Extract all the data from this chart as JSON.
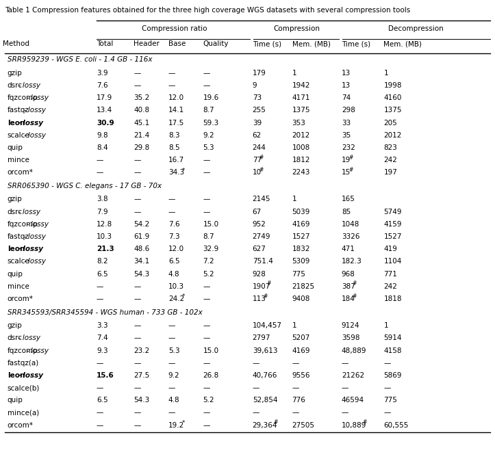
{
  "title": "Table 1 Compression features obtained for the three high coverage WGS datasets with several compression tools",
  "columns": [
    "Method",
    "Total",
    "Header",
    "Base",
    "Quality",
    "Time (s)",
    "Mem. (MB)",
    "Time (s)",
    "Mem. (MB)"
  ],
  "col_groups": [
    {
      "label": "",
      "cols": [
        0
      ]
    },
    {
      "label": "Compression ratio",
      "cols": [
        1,
        2,
        3,
        4
      ]
    },
    {
      "label": "Compression",
      "cols": [
        5,
        6
      ]
    },
    {
      "label": "Decompression",
      "cols": [
        7,
        8
      ]
    }
  ],
  "sections": [
    {
      "header": "SRR959239 - WGS E. coli - 1.4 GB - 116x",
      "header_italic": [
        false,
        true,
        false,
        false,
        false
      ],
      "rows": [
        {
          "method": "gzip",
          "bold": false,
          "data": [
            "3.9",
            "—",
            "—",
            "—",
            "179",
            "1",
            "13",
            "1"
          ]
        },
        {
          "method": "dsrc-lossy",
          "bold": false,
          "italic": true,
          "data": [
            "7.6",
            "—",
            "—",
            "—",
            "9",
            "1942",
            "13",
            "1998"
          ]
        },
        {
          "method": "fqzcomp-lossy",
          "bold": false,
          "italic": true,
          "data": [
            "17.9",
            "35.2",
            "12.0",
            "19.6",
            "73",
            "4171",
            "74",
            "4160"
          ]
        },
        {
          "method": "fastqz-lossy",
          "bold": false,
          "italic": true,
          "data": [
            "13.4",
            "40.8",
            "14.1",
            "8.7",
            "255",
            "1375",
            "298",
            "1375"
          ]
        },
        {
          "method": "leon-lossy",
          "bold": true,
          "italic": true,
          "data": [
            "30.9",
            "45.1",
            "17.5",
            "59.3",
            "39",
            "353",
            "33",
            "205"
          ]
        },
        {
          "method": "scalce-lossy",
          "bold": false,
          "italic": true,
          "data": [
            "9.8",
            "21.4",
            "8.3",
            "9.2",
            "62",
            "2012",
            "35",
            "2012"
          ]
        },
        {
          "method": "quip",
          "bold": false,
          "data": [
            "8.4",
            "29.8",
            "8.5",
            "5.3",
            "244",
            "1008",
            "232",
            "823"
          ]
        },
        {
          "method": "mince",
          "bold": false,
          "data": [
            "—",
            "—",
            "16.7",
            "—",
            "77♯",
            "1812",
            "19♯",
            "242"
          ]
        },
        {
          "method": "orcom*",
          "bold": false,
          "data": [
            "—",
            "—",
            "34.3*",
            "—",
            "10♯",
            "2243",
            "15♯",
            "197"
          ]
        }
      ]
    },
    {
      "header": "SRR065390 - WGS C. elegans - 17 GB - 70x",
      "header_italic": [
        false,
        true,
        false,
        false,
        false
      ],
      "rows": [
        {
          "method": "gzip",
          "bold": false,
          "data": [
            "3.8",
            "—",
            "—",
            "—",
            "2145",
            "1",
            "165",
            ""
          ]
        },
        {
          "method": "dsrc-lossy",
          "bold": false,
          "italic": true,
          "data": [
            "7.9",
            "—",
            "—",
            "—",
            "67",
            "5039",
            "85",
            "5749"
          ]
        },
        {
          "method": "fqzcomp-lossy",
          "bold": false,
          "italic": true,
          "data": [
            "12.8",
            "54.2",
            "7.6",
            "15.0",
            "952",
            "4169",
            "1048",
            "4159"
          ]
        },
        {
          "method": "fastqz-lossy",
          "bold": false,
          "italic": true,
          "data": [
            "10.3",
            "61.9",
            "7.3",
            "8.7",
            "2749",
            "1527",
            "3326",
            "1527"
          ]
        },
        {
          "method": "leon-lossy",
          "bold": true,
          "italic": true,
          "data": [
            "21.3",
            "48.6",
            "12.0",
            "32.9",
            "627",
            "1832",
            "471",
            "419"
          ]
        },
        {
          "method": "scalce-lossy",
          "bold": false,
          "italic": true,
          "data": [
            "8.2",
            "34.1",
            "6.5",
            "7.2",
            "751.4",
            "5309",
            "182.3",
            "1104"
          ]
        },
        {
          "method": "quip",
          "bold": false,
          "data": [
            "6.5",
            "54.3",
            "4.8",
            "5.2",
            "928",
            "775",
            "968",
            "771"
          ]
        },
        {
          "method": "mince",
          "bold": false,
          "data": [
            "—",
            "—",
            "10.3",
            "—",
            "1907♯",
            "21825",
            "387♯",
            "242"
          ]
        },
        {
          "method": "orcom*",
          "bold": false,
          "data": [
            "—",
            "—",
            "24.2*",
            "—",
            "113♯",
            "9408",
            "184♯",
            "1818"
          ]
        }
      ]
    },
    {
      "header": "SRR345593/SRR345594 - WGS human - 733 GB - 102x",
      "header_italic": [
        false,
        false,
        false,
        false,
        false
      ],
      "rows": [
        {
          "method": "gzip",
          "bold": false,
          "data": [
            "3.3",
            "—",
            "—",
            "—",
            "104,457",
            "1",
            "9124",
            "1"
          ]
        },
        {
          "method": "dsrc-lossy",
          "bold": false,
          "italic": true,
          "data": [
            "7.4",
            "—",
            "—",
            "—",
            "2797",
            "5207",
            "3598",
            "5914"
          ]
        },
        {
          "method": "fqzcomp-lossy",
          "bold": false,
          "italic": true,
          "data": [
            "9.3",
            "23.2",
            "5.3",
            "15.0",
            "39,613",
            "4169",
            "48,889",
            "4158"
          ]
        },
        {
          "method": "fastqz(a)",
          "bold": false,
          "data": [
            "—",
            "—",
            "—",
            "—",
            "—",
            "—",
            "—",
            "—"
          ]
        },
        {
          "method": "leon-lossy",
          "bold": true,
          "italic": true,
          "data": [
            "15.6",
            "27.5",
            "9.2",
            "26.8",
            "40,766",
            "9556",
            "21262",
            "5869"
          ]
        },
        {
          "method": "scalce(b)",
          "bold": false,
          "data": [
            "—",
            "—",
            "—",
            "—",
            "—",
            "—",
            "—",
            "—"
          ]
        },
        {
          "method": "quip",
          "bold": false,
          "data": [
            "6.5",
            "54.3",
            "4.8",
            "5.2",
            "52,854",
            "776",
            "46594",
            "775"
          ]
        },
        {
          "method": "mince(a)",
          "bold": false,
          "data": [
            "—",
            "—",
            "—",
            "—",
            "—",
            "—",
            "—",
            "—"
          ]
        },
        {
          "method": "orcom*",
          "bold": false,
          "data": [
            "—",
            "—",
            "19.2*",
            "—",
            "29,364♯",
            "27505",
            "10,889♯",
            "60,555"
          ]
        }
      ]
    }
  ]
}
